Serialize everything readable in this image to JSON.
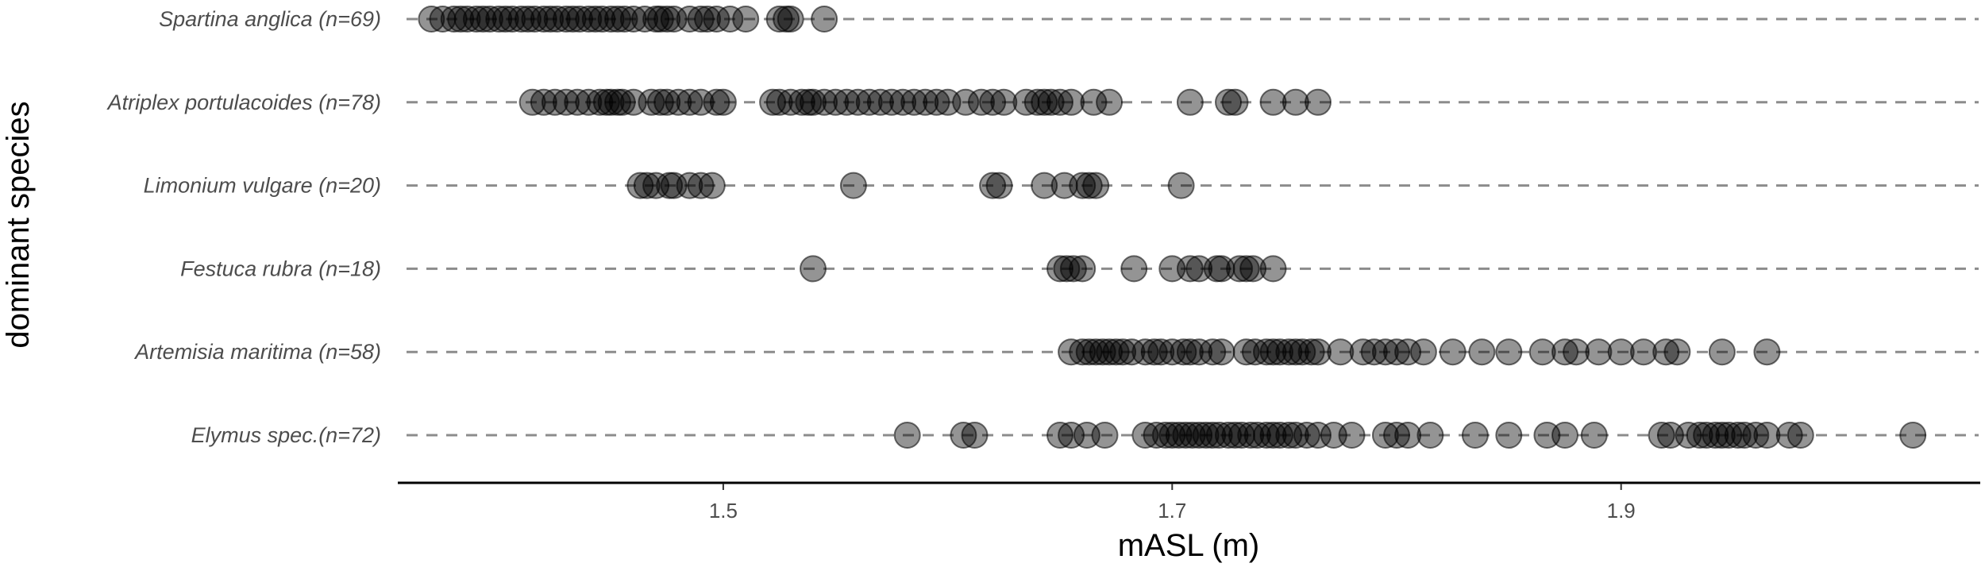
{
  "chart_data": {
    "type": "scatter",
    "xlabel": "mASL (m)",
    "ylabel": "dominant species",
    "xlim": [
      1.355,
      2.06
    ],
    "xticks": [
      1.5,
      1.7,
      1.9
    ],
    "xtick_labels": [
      "1.5",
      "1.7",
      "1.9"
    ],
    "grid": false,
    "guide_lines": "dashed horizontal per category",
    "point_color": "#000000",
    "categories": [
      "Spartina anglica (n=69)",
      "Atriplex portulacoides (n=78)",
      "Limonium vulgare (n=20)",
      "Festuca rubra (n=18)",
      "Artemisia maritima (n=58)",
      "Elymus spec.(n=72)"
    ],
    "series": [
      {
        "category": "Spartina anglica (n=69)",
        "values": [
          1.37,
          1.375,
          1.38,
          1.383,
          1.386,
          1.39,
          1.393,
          1.396,
          1.4,
          1.403,
          1.406,
          1.41,
          1.413,
          1.416,
          1.42,
          1.423,
          1.426,
          1.43,
          1.433,
          1.436,
          1.44,
          1.443,
          1.446,
          1.45,
          1.453,
          1.456,
          1.46,
          1.465,
          1.47,
          1.472,
          1.475,
          1.478,
          1.485,
          1.49,
          1.493,
          1.497,
          1.503,
          1.51,
          1.525,
          1.528,
          1.53,
          1.545
        ]
      },
      {
        "category": "Atriplex portulacoides (n=78)",
        "values": [
          1.415,
          1.42,
          1.425,
          1.43,
          1.435,
          1.44,
          1.445,
          1.448,
          1.45,
          1.453,
          1.455,
          1.46,
          1.468,
          1.472,
          1.475,
          1.48,
          1.485,
          1.49,
          1.497,
          1.5,
          1.522,
          1.525,
          1.53,
          1.535,
          1.538,
          1.54,
          1.545,
          1.55,
          1.555,
          1.56,
          1.565,
          1.57,
          1.575,
          1.58,
          1.585,
          1.59,
          1.595,
          1.6,
          1.608,
          1.615,
          1.62,
          1.625,
          1.635,
          1.64,
          1.643,
          1.646,
          1.65,
          1.655,
          1.665,
          1.672,
          1.708,
          1.725,
          1.728,
          1.745,
          1.755,
          1.765
        ]
      },
      {
        "category": "Limonium vulgare (n=20)",
        "values": [
          1.463,
          1.466,
          1.47,
          1.476,
          1.478,
          1.485,
          1.49,
          1.495,
          1.558,
          1.62,
          1.623,
          1.643,
          1.652,
          1.66,
          1.663,
          1.666,
          1.704
        ]
      },
      {
        "category": "Festuca rubra (n=18)",
        "values": [
          1.54,
          1.65,
          1.653,
          1.656,
          1.66,
          1.683,
          1.7,
          1.708,
          1.712,
          1.72,
          1.722,
          1.73,
          1.733,
          1.736,
          1.745
        ]
      },
      {
        "category": "Artemisia maritima (n=58)",
        "values": [
          1.655,
          1.66,
          1.663,
          1.666,
          1.669,
          1.672,
          1.675,
          1.678,
          1.682,
          1.688,
          1.692,
          1.695,
          1.7,
          1.705,
          1.708,
          1.712,
          1.718,
          1.722,
          1.733,
          1.737,
          1.742,
          1.745,
          1.748,
          1.752,
          1.755,
          1.758,
          1.762,
          1.765,
          1.775,
          1.785,
          1.79,
          1.795,
          1.8,
          1.805,
          1.812,
          1.825,
          1.838,
          1.85,
          1.865,
          1.875,
          1.88,
          1.89,
          1.9,
          1.91,
          1.92,
          1.925,
          1.945,
          1.965
        ]
      },
      {
        "category": "Elymus spec.(n=72)",
        "values": [
          1.582,
          1.607,
          1.612,
          1.65,
          1.655,
          1.662,
          1.67,
          1.688,
          1.693,
          1.697,
          1.7,
          1.703,
          1.706,
          1.709,
          1.712,
          1.715,
          1.718,
          1.721,
          1.725,
          1.728,
          1.731,
          1.735,
          1.738,
          1.742,
          1.745,
          1.748,
          1.752,
          1.755,
          1.76,
          1.765,
          1.772,
          1.78,
          1.795,
          1.8,
          1.805,
          1.815,
          1.835,
          1.85,
          1.867,
          1.875,
          1.888,
          1.918,
          1.922,
          1.93,
          1.935,
          1.938,
          1.942,
          1.945,
          1.948,
          1.952,
          1.955,
          1.96,
          1.965,
          1.975,
          1.98,
          2.03
        ]
      }
    ]
  }
}
